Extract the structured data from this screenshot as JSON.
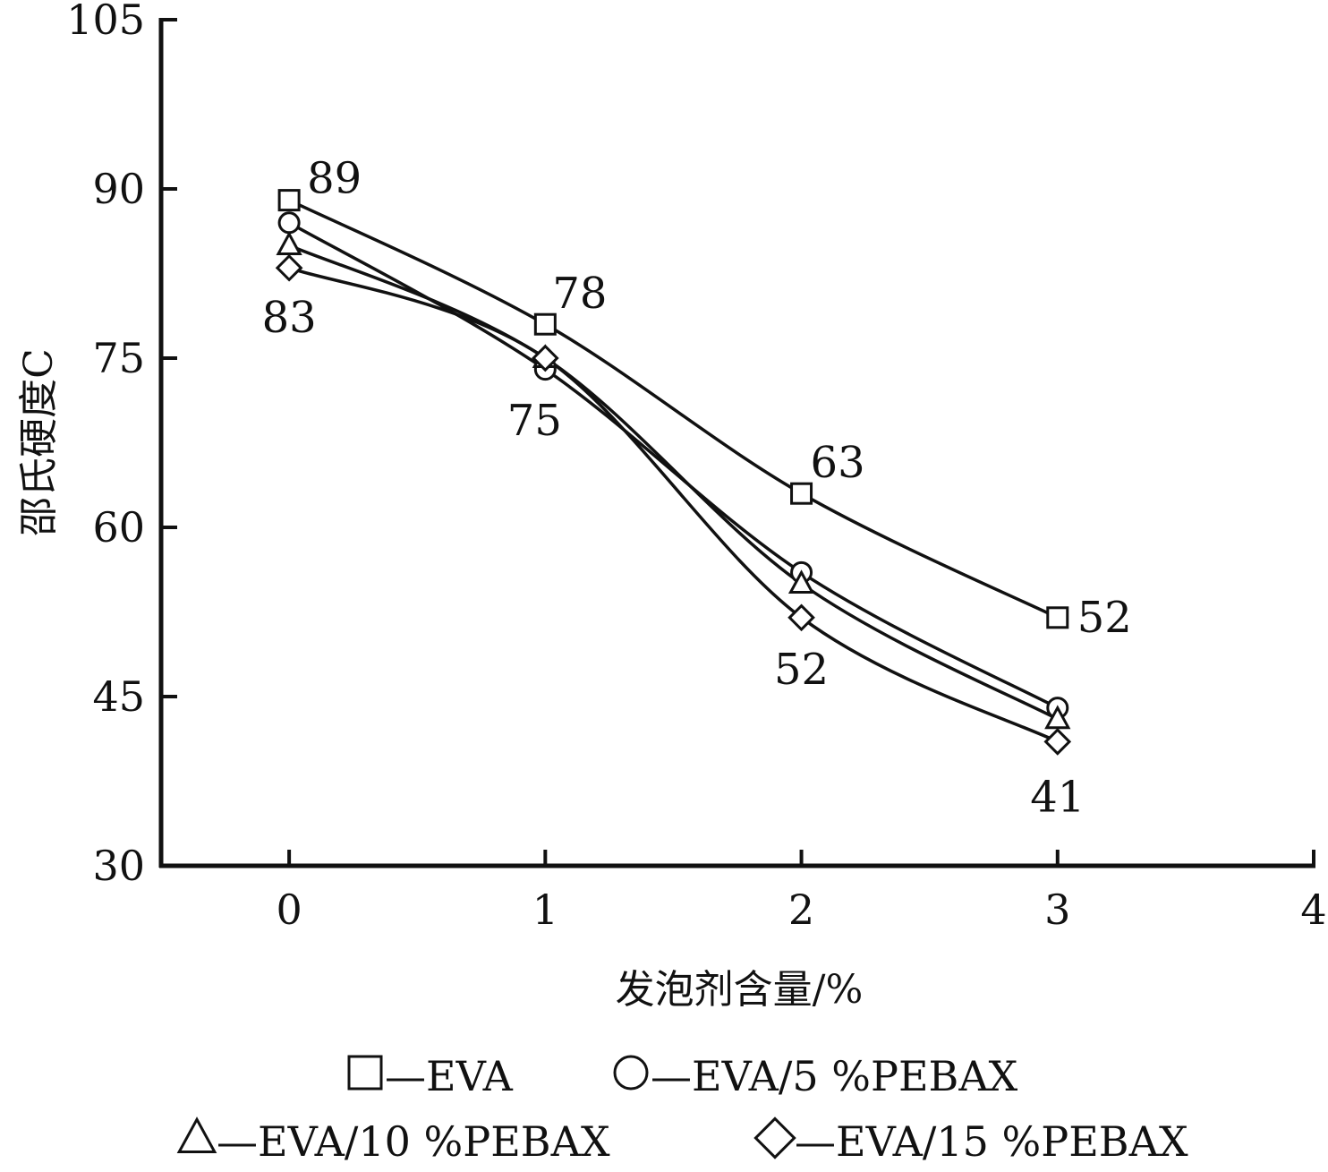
{
  "chart_data": {
    "type": "line",
    "xlabel": "发泡剂含量/%",
    "ylabel": "邵氏硬度C",
    "xlim": [
      -0.5,
      4
    ],
    "ylim": [
      30,
      105
    ],
    "x_ticks": [
      0,
      1,
      2,
      3,
      4
    ],
    "y_ticks": [
      30,
      45,
      60,
      75,
      90,
      105
    ],
    "grid": false,
    "legend_position": "bottom",
    "series": [
      {
        "name": "EVA",
        "marker": "square",
        "x": [
          0,
          1,
          2,
          3
        ],
        "y": [
          89,
          78,
          63,
          52
        ]
      },
      {
        "name": "EVA/5 %PEBAX",
        "marker": "circle",
        "x": [
          0,
          1,
          2,
          3
        ],
        "y": [
          87,
          74,
          56,
          44
        ]
      },
      {
        "name": "EVA/10 %PEBAX",
        "marker": "triangle",
        "x": [
          0,
          1,
          2,
          3
        ],
        "y": [
          85,
          75,
          55,
          43
        ]
      },
      {
        "name": "EVA/15 %PEBAX",
        "marker": "diamond",
        "x": [
          0,
          1,
          2,
          3
        ],
        "y": [
          83,
          75,
          52,
          41
        ]
      }
    ],
    "annotations": [
      {
        "text": "89",
        "series": "EVA",
        "x": 0,
        "y": 89
      },
      {
        "text": "78",
        "series": "EVA",
        "x": 1,
        "y": 78
      },
      {
        "text": "63",
        "series": "EVA",
        "x": 2,
        "y": 63
      },
      {
        "text": "52",
        "series": "EVA",
        "x": 3,
        "y": 52
      },
      {
        "text": "83",
        "series": "EVA/15 %PEBAX",
        "x": 0,
        "y": 83
      },
      {
        "text": "75",
        "series": "EVA/15 %PEBAX",
        "x": 1,
        "y": 75
      },
      {
        "text": "52",
        "series": "EVA/15 %PEBAX",
        "x": 2,
        "y": 52
      },
      {
        "text": "41",
        "series": "EVA/15 %PEBAX",
        "x": 3,
        "y": 41
      }
    ],
    "legend": {
      "separator": "—",
      "rows": [
        [
          "EVA",
          "EVA/5 %PEBAX"
        ],
        [
          "EVA/10 %PEBAX",
          "EVA/15 %PEBAX"
        ]
      ]
    },
    "colors": {
      "line": "#111111",
      "marker_fill": "#ffffff"
    }
  }
}
